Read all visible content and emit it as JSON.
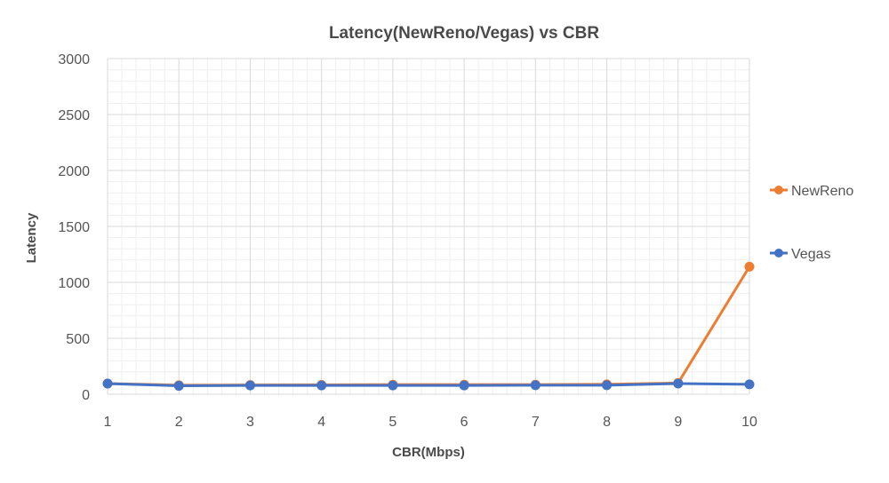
{
  "chart_data": {
    "type": "line",
    "title": "Latency(NewReno/Vegas) vs CBR",
    "xlabel": "CBR(Mbps)",
    "ylabel": "Latency",
    "x": [
      1,
      2,
      3,
      4,
      5,
      6,
      7,
      8,
      9,
      10
    ],
    "ylim": [
      0,
      3000
    ],
    "yticks": [
      0,
      500,
      1000,
      1500,
      2000,
      2500,
      3000
    ],
    "grid": true,
    "legend_position": "right",
    "series": [
      {
        "name": "NewReno",
        "color": "#ed7d31",
        "values": [
          95,
          80,
          82,
          83,
          85,
          85,
          85,
          88,
          100,
          1140
        ]
      },
      {
        "name": "Vegas",
        "color": "#4472c4",
        "values": [
          95,
          75,
          78,
          78,
          78,
          78,
          80,
          80,
          95,
          88
        ]
      }
    ]
  }
}
